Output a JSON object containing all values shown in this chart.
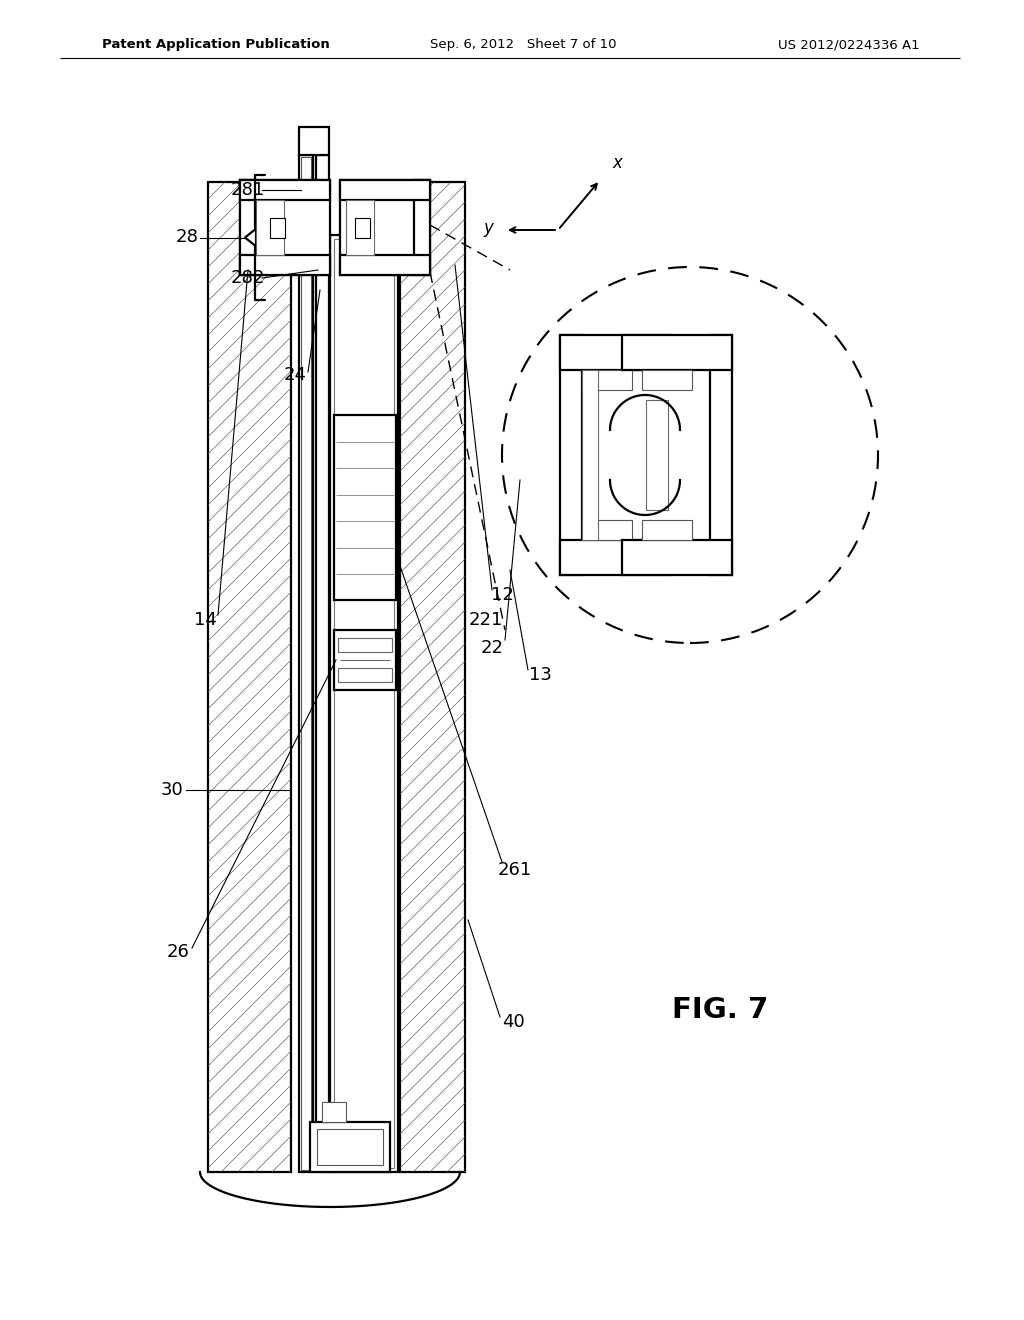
{
  "bg_color": "#ffffff",
  "line_color": "#000000",
  "header_left": "Patent Application Publication",
  "header_center": "Sep. 6, 2012   Sheet 7 of 10",
  "header_right": "US 2012/0224336 A1",
  "figure_label": "FIG. 7"
}
